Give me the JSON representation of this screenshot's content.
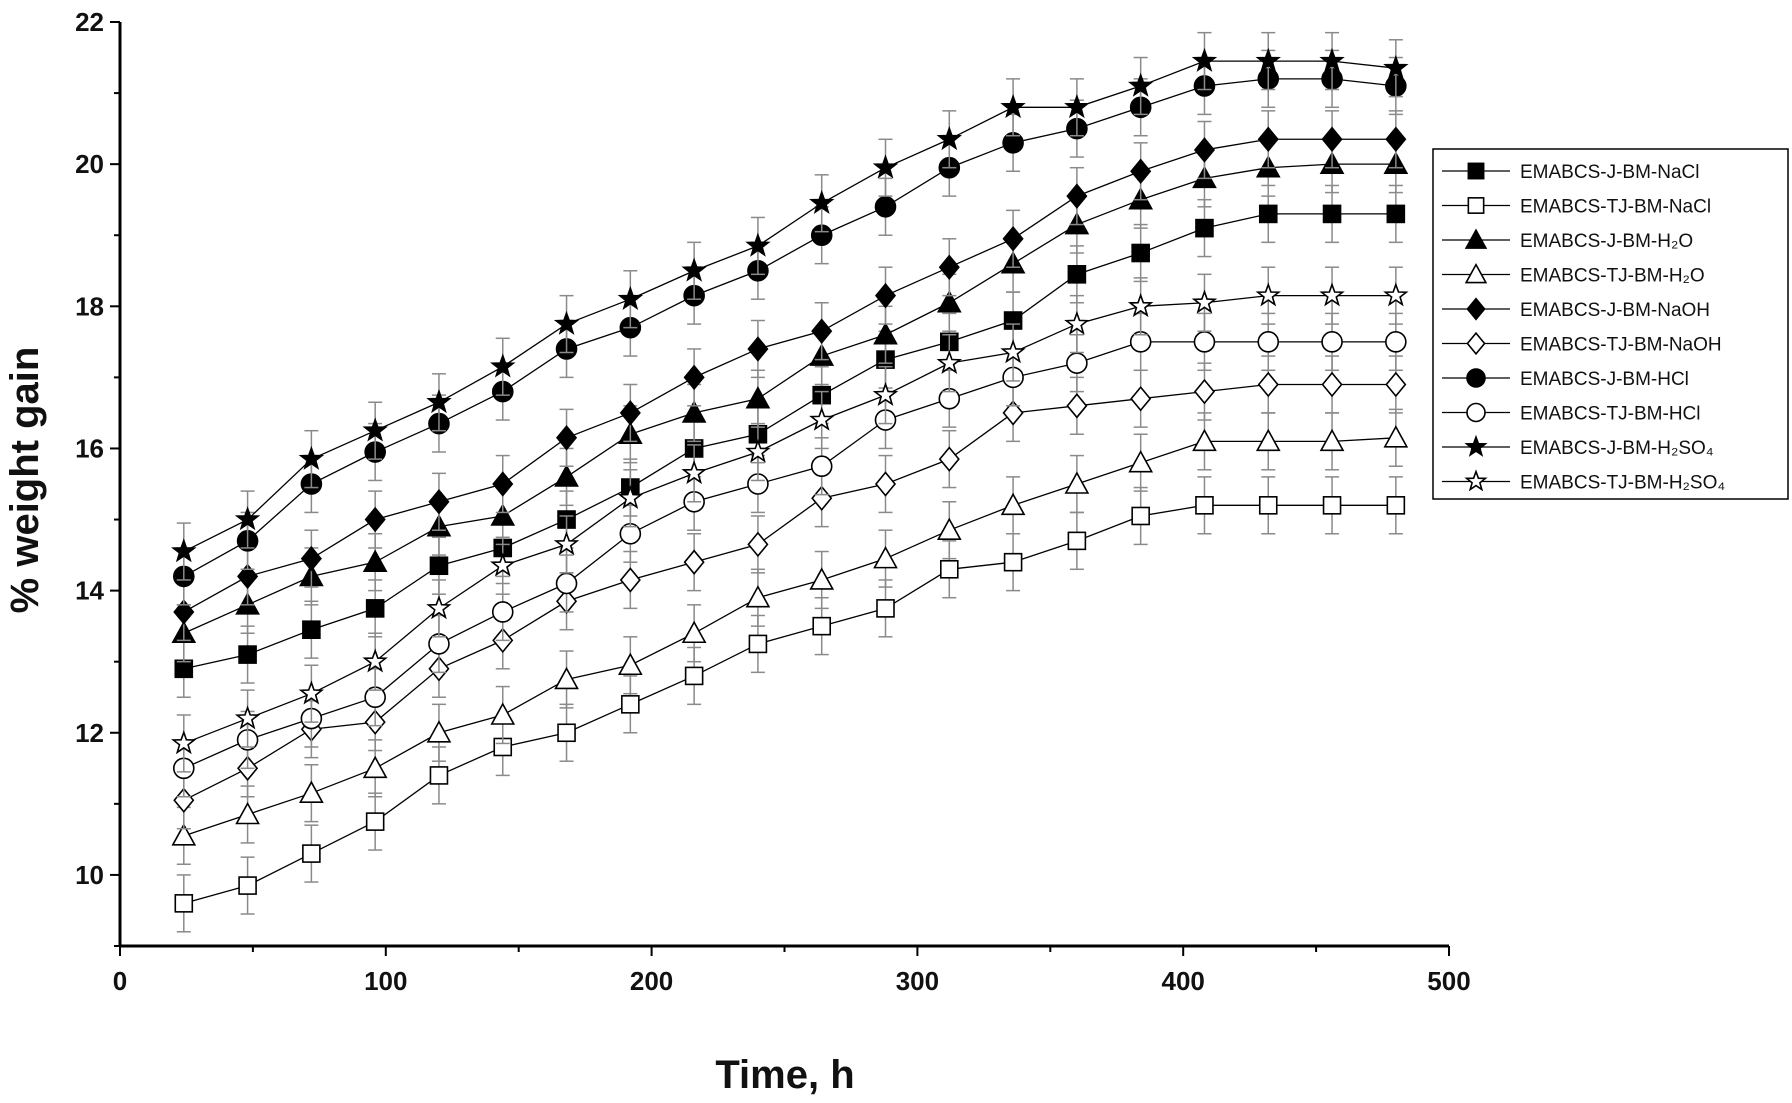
{
  "chart_data": {
    "type": "line",
    "xlabel": "Time, h",
    "ylabel": "% weight gain",
    "xlim": [
      0,
      500
    ],
    "ylim": [
      9,
      22
    ],
    "xticks": [
      0,
      100,
      200,
      300,
      400,
      500
    ],
    "yticks": [
      10,
      12,
      14,
      16,
      18,
      20,
      22
    ],
    "grid": false,
    "legend_position": "right",
    "error_bars": true,
    "x": [
      24,
      48,
      72,
      96,
      120,
      144,
      168,
      192,
      216,
      240,
      264,
      288,
      312,
      336,
      360,
      384,
      408,
      432,
      456,
      480
    ],
    "series": [
      {
        "name": "EMABCS-J-BM-NaCl",
        "marker": "square",
        "filled": true,
        "values": [
          12.9,
          13.1,
          13.45,
          13.75,
          14.35,
          14.6,
          15.0,
          15.45,
          16.0,
          16.2,
          16.75,
          17.25,
          17.5,
          17.8,
          18.45,
          18.75,
          19.1,
          19.3,
          19.3,
          19.3
        ]
      },
      {
        "name": "EMABCS-TJ-BM-NaCl",
        "marker": "square",
        "filled": false,
        "values": [
          9.6,
          9.85,
          10.3,
          10.75,
          11.4,
          11.8,
          12.0,
          12.4,
          12.8,
          13.25,
          13.5,
          13.75,
          14.3,
          14.4,
          14.7,
          15.05,
          15.2,
          15.2,
          15.2,
          15.2
        ]
      },
      {
        "name": "EMABCS-J-BM-H₂O",
        "marker": "triangle",
        "filled": true,
        "values": [
          13.4,
          13.8,
          14.2,
          14.4,
          14.9,
          15.05,
          15.6,
          16.2,
          16.5,
          16.7,
          17.3,
          17.6,
          18.05,
          18.6,
          19.15,
          19.5,
          19.8,
          19.95,
          20.0,
          20.0
        ]
      },
      {
        "name": "EMABCS-TJ-BM-H₂O",
        "marker": "triangle",
        "filled": false,
        "values": [
          10.55,
          10.85,
          11.15,
          11.5,
          12.0,
          12.25,
          12.75,
          12.95,
          13.4,
          13.9,
          14.15,
          14.45,
          14.85,
          15.2,
          15.5,
          15.8,
          16.1,
          16.1,
          16.1,
          16.15
        ]
      },
      {
        "name": "EMABCS-J-BM-NaOH",
        "marker": "diamond",
        "filled": true,
        "values": [
          13.7,
          14.2,
          14.45,
          15.0,
          15.25,
          15.5,
          16.15,
          16.5,
          17.0,
          17.4,
          17.65,
          18.15,
          18.55,
          18.95,
          19.55,
          19.9,
          20.2,
          20.35,
          20.35,
          20.35
        ]
      },
      {
        "name": "EMABCS-TJ-BM-NaOH",
        "marker": "diamond",
        "filled": false,
        "values": [
          11.05,
          11.5,
          12.05,
          12.15,
          12.9,
          13.3,
          13.85,
          14.15,
          14.4,
          14.65,
          15.3,
          15.5,
          15.85,
          16.5,
          16.6,
          16.7,
          16.8,
          16.9,
          16.9,
          16.9
        ]
      },
      {
        "name": "EMABCS-J-BM-HCl",
        "marker": "circle",
        "filled": true,
        "values": [
          14.2,
          14.7,
          15.5,
          15.95,
          16.35,
          16.8,
          17.4,
          17.7,
          18.15,
          18.5,
          19.0,
          19.4,
          19.95,
          20.3,
          20.5,
          20.8,
          21.1,
          21.2,
          21.2,
          21.1
        ]
      },
      {
        "name": "EMABCS-TJ-BM-HCl",
        "marker": "circle",
        "filled": false,
        "values": [
          11.5,
          11.9,
          12.2,
          12.5,
          13.25,
          13.7,
          14.1,
          14.8,
          15.25,
          15.5,
          15.75,
          16.4,
          16.7,
          17.0,
          17.2,
          17.5,
          17.5,
          17.5,
          17.5,
          17.5
        ]
      },
      {
        "name": "EMABCS-J-BM-H₂SO₄",
        "marker": "star",
        "filled": true,
        "values": [
          14.55,
          15.0,
          15.85,
          16.25,
          16.65,
          17.15,
          17.75,
          18.1,
          18.5,
          18.85,
          19.45,
          19.95,
          20.35,
          20.8,
          20.8,
          21.1,
          21.45,
          21.45,
          21.45,
          21.35
        ]
      },
      {
        "name": "EMABCS-TJ-BM-H₂SO₄",
        "marker": "star",
        "filled": false,
        "values": [
          11.85,
          12.2,
          12.55,
          13.0,
          13.75,
          14.35,
          14.65,
          15.3,
          15.65,
          15.95,
          16.4,
          16.75,
          17.2,
          17.35,
          17.75,
          18.0,
          18.05,
          18.15,
          18.15,
          18.15
        ]
      }
    ],
    "error": 0.4,
    "colors": {
      "line": "#000000",
      "error_bar": "#8a8a8a"
    }
  }
}
